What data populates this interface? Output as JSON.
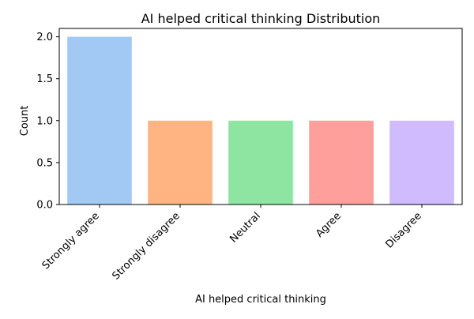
{
  "chart_data": {
    "type": "bar",
    "title": "AI helped critical thinking Distribution",
    "xlabel": "AI helped critical thinking",
    "ylabel": "Count",
    "categories": [
      "Strongly agree",
      "Strongly disagree",
      "Neutral",
      "Agree",
      "Disagree"
    ],
    "values": [
      2,
      1,
      1,
      1,
      1
    ],
    "colors": [
      "#a1c9f4",
      "#ffb482",
      "#8de5a1",
      "#ff9f9b",
      "#d0bbff"
    ],
    "ylim": [
      0,
      2.1
    ],
    "yticks": [
      0.0,
      0.5,
      1.0,
      1.5,
      2.0
    ],
    "ytick_labels": [
      "0.0",
      "0.5",
      "1.0",
      "1.5",
      "2.0"
    ],
    "grid": false,
    "legend": "none"
  }
}
